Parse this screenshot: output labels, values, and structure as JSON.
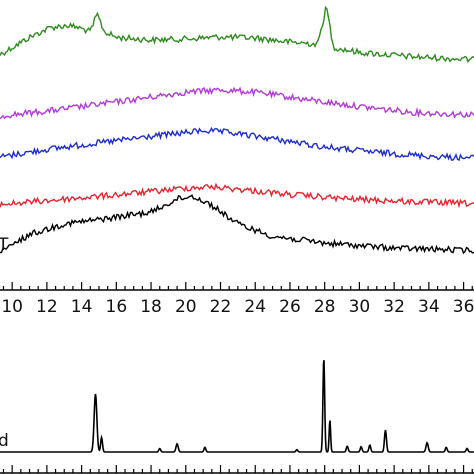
{
  "chart_data": [
    {
      "type": "line",
      "xlabel": "",
      "ylabel": "",
      "xlim": [
        9.3,
        36.6
      ],
      "x_ticks": [
        10,
        12,
        14,
        16,
        18,
        20,
        22,
        24,
        26,
        28,
        30,
        32,
        34,
        36
      ],
      "grid": false,
      "series": [
        {
          "name": "",
          "color": "#2e8b1e",
          "points": [
            [
              9.3,
              0.22
            ],
            [
              11,
              0.55
            ],
            [
              12.2,
              0.74
            ],
            [
              13.2,
              0.78
            ],
            [
              13.8,
              0.74
            ],
            [
              14.5,
              0.66
            ],
            [
              14.9,
              1.0
            ],
            [
              15.3,
              0.66
            ],
            [
              16,
              0.55
            ],
            [
              18,
              0.5
            ],
            [
              20,
              0.52
            ],
            [
              22,
              0.56
            ],
            [
              24,
              0.54
            ],
            [
              26,
              0.46
            ],
            [
              27.6,
              0.42
            ],
            [
              28.1,
              1.15
            ],
            [
              28.5,
              0.36
            ],
            [
              30,
              0.26
            ],
            [
              33,
              0.18
            ],
            [
              36.6,
              0.12
            ]
          ]
        },
        {
          "name": "",
          "color": "#b23ad6",
          "points": [
            [
              9.3,
              0.06
            ],
            [
              12,
              0.18
            ],
            [
              15,
              0.36
            ],
            [
              18,
              0.55
            ],
            [
              20,
              0.68
            ],
            [
              22,
              0.74
            ],
            [
              24,
              0.68
            ],
            [
              27,
              0.48
            ],
            [
              30,
              0.3
            ],
            [
              33,
              0.15
            ],
            [
              36.6,
              0.08
            ]
          ]
        },
        {
          "name": "",
          "color": "#1c2ec7",
          "points": [
            [
              9.3,
              0.08
            ],
            [
              12,
              0.28
            ],
            [
              15,
              0.45
            ],
            [
              18,
              0.62
            ],
            [
              20,
              0.72
            ],
            [
              21,
              0.78
            ],
            [
              22.5,
              0.72
            ],
            [
              25,
              0.56
            ],
            [
              28,
              0.34
            ],
            [
              31,
              0.2
            ],
            [
              34,
              0.1
            ],
            [
              36.6,
              0.05
            ]
          ]
        },
        {
          "name": "",
          "color": "#e0262e",
          "points": [
            [
              9.3,
              0.05
            ],
            [
              12,
              0.18
            ],
            [
              15,
              0.32
            ],
            [
              18,
              0.48
            ],
            [
              20,
              0.6
            ],
            [
              21.5,
              0.64
            ],
            [
              23,
              0.56
            ],
            [
              26,
              0.38
            ],
            [
              29,
              0.25
            ],
            [
              33,
              0.14
            ],
            [
              36.6,
              0.08
            ]
          ]
        },
        {
          "name": "",
          "color": "#000000",
          "points": [
            [
              9.3,
              0.08
            ],
            [
              11,
              0.38
            ],
            [
              13,
              0.55
            ],
            [
              15,
              0.62
            ],
            [
              18,
              0.74
            ],
            [
              19.5,
              0.95
            ],
            [
              20.4,
              1.0
            ],
            [
              21.5,
              0.85
            ],
            [
              23,
              0.55
            ],
            [
              25,
              0.35
            ],
            [
              28,
              0.24
            ],
            [
              32,
              0.16
            ],
            [
              36.6,
              0.12
            ]
          ]
        }
      ],
      "trace_labels": [
        {
          "series_index": 4,
          "text": "T"
        }
      ]
    },
    {
      "type": "line",
      "xlabel": "",
      "ylabel": "",
      "xlim": [
        9.3,
        36.6
      ],
      "grid": false,
      "series": [
        {
          "name": "",
          "color": "#000000",
          "baseline": 0.0,
          "peaks": [
            [
              14.8,
              1.0,
              0.22
            ],
            [
              15.15,
              0.25,
              0.15
            ],
            [
              18.5,
              0.06,
              0.15
            ],
            [
              19.5,
              0.14,
              0.18
            ],
            [
              21.1,
              0.08,
              0.15
            ],
            [
              26.4,
              0.04,
              0.15
            ],
            [
              27.95,
              1.62,
              0.14
            ],
            [
              28.3,
              0.55,
              0.12
            ],
            [
              29.3,
              0.1,
              0.15
            ],
            [
              30.1,
              0.09,
              0.15
            ],
            [
              30.6,
              0.12,
              0.15
            ],
            [
              31.5,
              0.38,
              0.16
            ],
            [
              33.9,
              0.16,
              0.18
            ],
            [
              35.0,
              0.08,
              0.15
            ],
            [
              36.2,
              0.06,
              0.15
            ]
          ]
        }
      ],
      "trace_labels": [
        {
          "series_index": 0,
          "text": "d"
        }
      ]
    }
  ]
}
